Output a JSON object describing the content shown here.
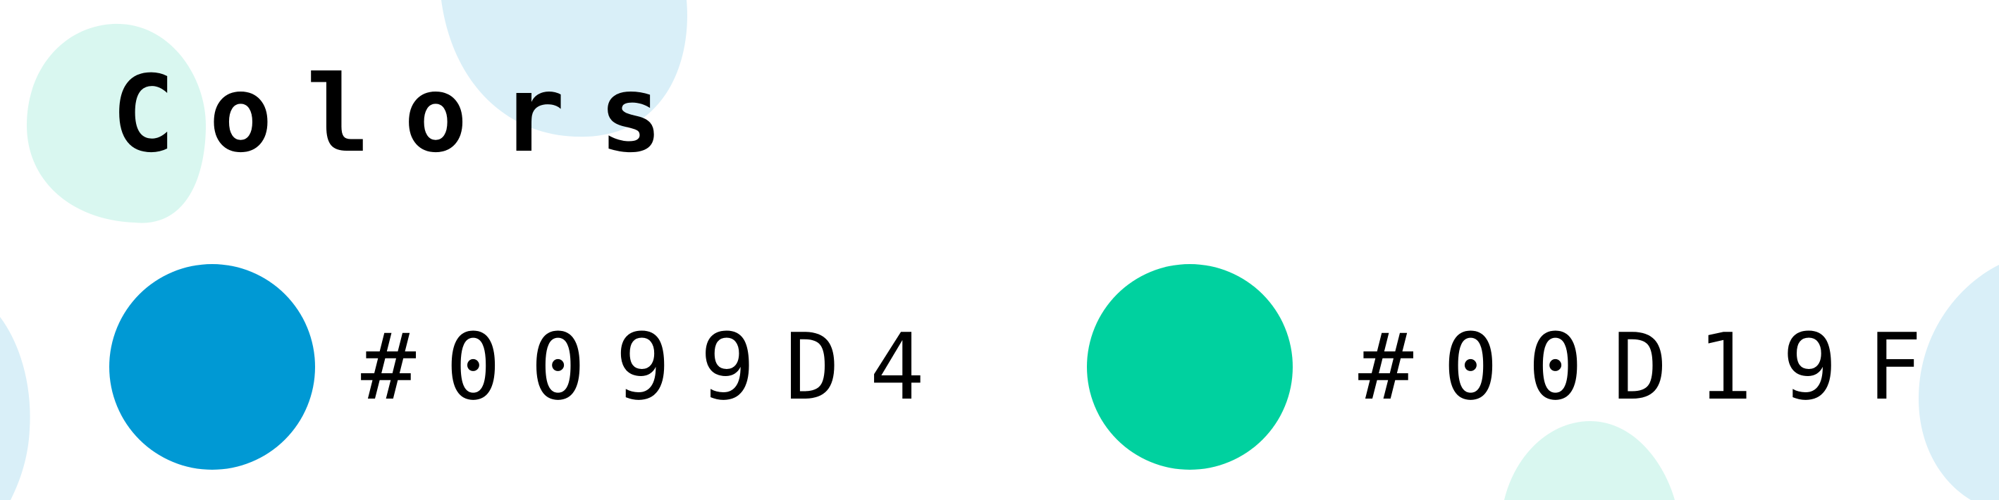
{
  "title": "Colors",
  "colors": [
    {
      "hex": "#0099D4",
      "label": "#0099D4"
    },
    {
      "hex": "#00D19F",
      "label": "#00D19F"
    }
  ],
  "decor": {
    "mint": "#D9F7F0",
    "light_blue": "#D9EFF8"
  }
}
